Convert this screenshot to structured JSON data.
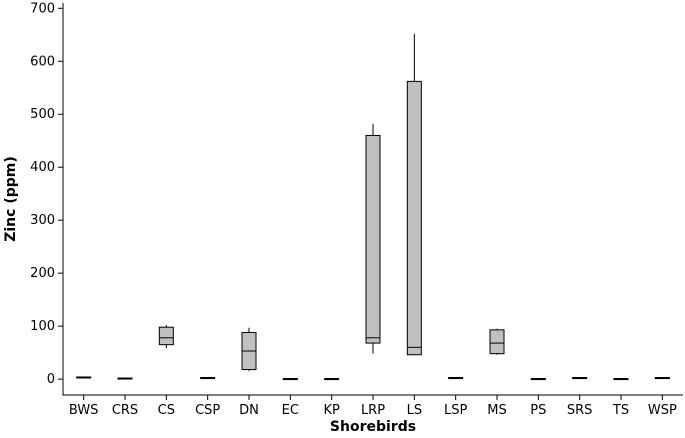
{
  "chart_data": {
    "type": "box",
    "title": "",
    "xlabel": "Shorebirds",
    "ylabel": "Zinc (ppm)",
    "ylim": [
      -30,
      710
    ],
    "yticks": [
      0,
      100,
      200,
      300,
      400,
      500,
      600,
      700
    ],
    "box_color": "#c0c0c0",
    "grid": false,
    "categories": [
      "BWS",
      "CRS",
      "CS",
      "CSP",
      "DN",
      "EC",
      "KP",
      "LRP",
      "LS",
      "LSP",
      "MS",
      "PS",
      "SRS",
      "TS",
      "WSP"
    ],
    "boxes": [
      {
        "label": "BWS",
        "min": 2,
        "q1": 3,
        "median": 3,
        "q3": 4,
        "max": 5
      },
      {
        "label": "CRS",
        "min": 0,
        "q1": 1,
        "median": 1,
        "q3": 2,
        "max": 3
      },
      {
        "label": "CS",
        "min": 58,
        "q1": 65,
        "median": 78,
        "q3": 98,
        "max": 102
      },
      {
        "label": "CSP",
        "min": 1,
        "q1": 1,
        "median": 2,
        "q3": 3,
        "max": 3
      },
      {
        "label": "DN",
        "min": 15,
        "q1": 18,
        "median": 53,
        "q3": 88,
        "max": 97
      },
      {
        "label": "EC",
        "min": 1,
        "q1": 1,
        "median": 1,
        "q3": 1,
        "max": 1
      },
      {
        "label": "KP",
        "min": 1,
        "q1": 1,
        "median": 1,
        "q3": 1,
        "max": 1
      },
      {
        "label": "LRP",
        "min": 48,
        "q1": 68,
        "median": 78,
        "q3": 460,
        "max": 482
      },
      {
        "label": "LS",
        "min": 45,
        "q1": 46,
        "median": 60,
        "q3": 562,
        "max": 652
      },
      {
        "label": "LSP",
        "min": 1,
        "q1": 1,
        "median": 2,
        "q3": 3,
        "max": 3
      },
      {
        "label": "MS",
        "min": 46,
        "q1": 48,
        "median": 68,
        "q3": 93,
        "max": 95
      },
      {
        "label": "PS",
        "min": 1,
        "q1": 1,
        "median": 1,
        "q3": 1,
        "max": 1
      },
      {
        "label": "SRS",
        "min": 1,
        "q1": 1,
        "median": 2,
        "q3": 3,
        "max": 3
      },
      {
        "label": "TS",
        "min": 1,
        "q1": 1,
        "median": 1,
        "q3": 1,
        "max": 1
      },
      {
        "label": "WSP",
        "min": 1,
        "q1": 1,
        "median": 2,
        "q3": 3,
        "max": 3
      }
    ]
  }
}
